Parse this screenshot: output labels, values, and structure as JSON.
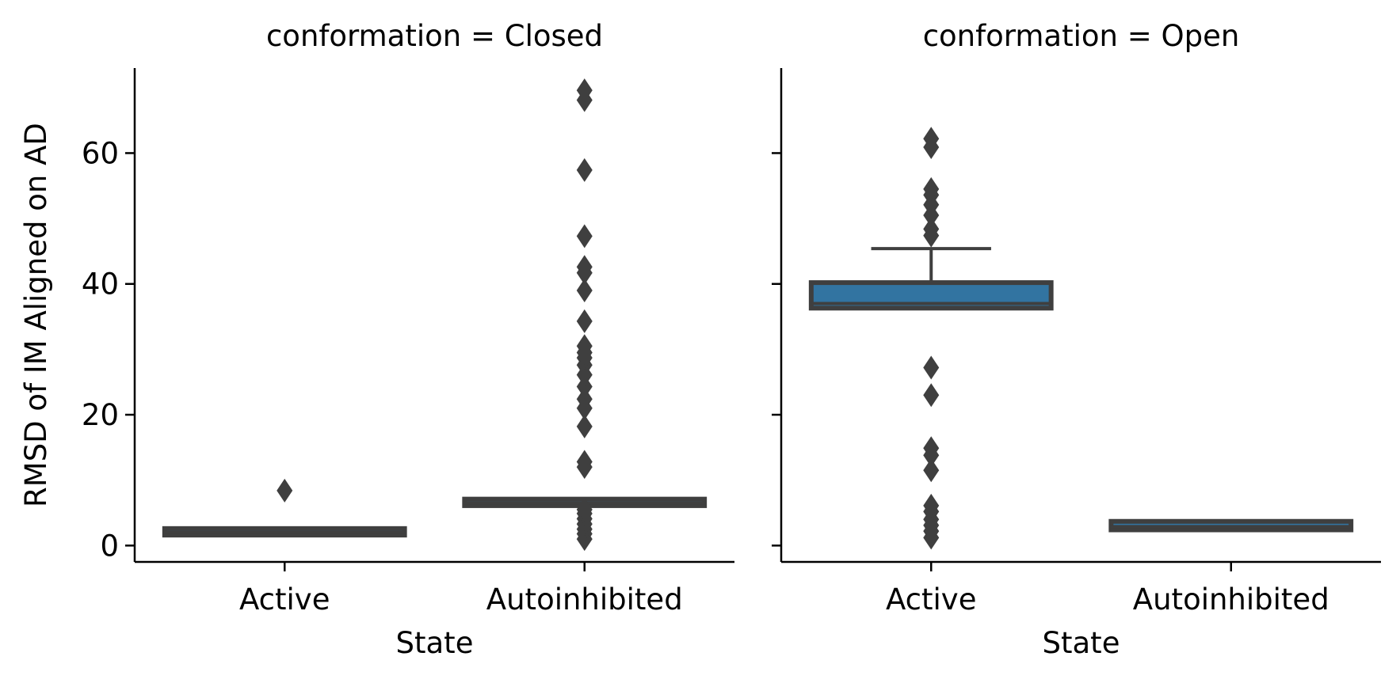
{
  "chart_data": {
    "type": "box",
    "ylabel": "RMSD of IM Aligned on AD",
    "xlabel": "State",
    "ylim": [
      -2.5,
      73
    ],
    "yticks": [
      0,
      20,
      40,
      60
    ],
    "categories": [
      "Active",
      "Autoinhibited"
    ],
    "box_color": "#3274a1",
    "line_color": "#3f3f3f",
    "panels": [
      {
        "title": "conformation = Closed",
        "boxes": [
          {
            "category": "Active",
            "q1": 1.6,
            "median": 2.0,
            "q3": 2.6,
            "whisker_low": 1.6,
            "whisker_high": 2.6,
            "outliers": [
              8.4
            ]
          },
          {
            "category": "Autoinhibited",
            "q1": 6.1,
            "median": 6.5,
            "q3": 7.1,
            "whisker_low": 6.1,
            "whisker_high": 7.1,
            "outliers": [
              1.0,
              1.8,
              2.5,
              3.3,
              4.1,
              4.9,
              5.5,
              12.0,
              12.8,
              18.2,
              21.0,
              22.4,
              24.3,
              26.1,
              27.6,
              28.7,
              29.5,
              30.5,
              34.3,
              39.0,
              41.7,
              42.6,
              47.3,
              57.4,
              68.1,
              69.6
            ]
          }
        ]
      },
      {
        "title": "conformation = Open",
        "boxes": [
          {
            "category": "Active",
            "q1": 36.3,
            "median": 37.0,
            "q3": 40.2,
            "whisker_low": 36.3,
            "whisker_high": 45.4,
            "outliers": [
              1.2,
              2.2,
              3.1,
              4.0,
              5.2,
              6.1,
              11.5,
              13.8,
              14.9,
              23.0,
              27.2,
              47.4,
              48.4,
              50.5,
              52.1,
              53.6,
              54.5,
              60.9,
              62.2
            ]
          },
          {
            "category": "Autoinhibited",
            "q1": 2.4,
            "median": 2.9,
            "q3": 3.7,
            "whisker_low": 2.4,
            "whisker_high": 3.7,
            "outliers": []
          }
        ]
      }
    ]
  }
}
